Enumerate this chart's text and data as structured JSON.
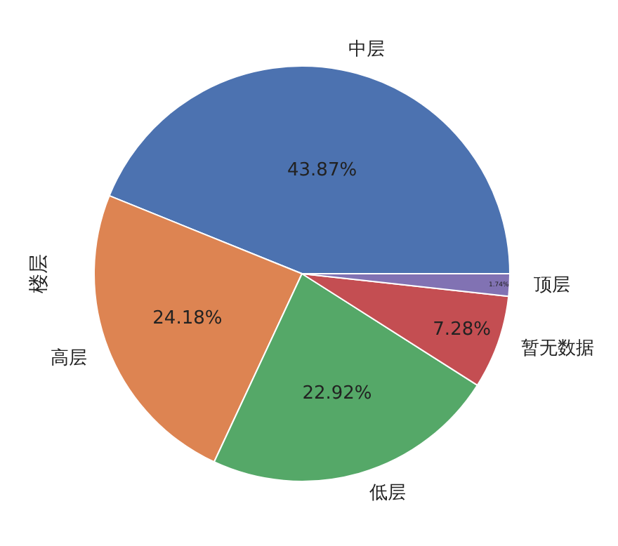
{
  "chart_data": {
    "type": "pie",
    "ylabel": "楼层",
    "categories": [
      "中层",
      "高层",
      "低层",
      "暂无数据",
      "顶层"
    ],
    "values": [
      43.87,
      24.18,
      22.92,
      7.28,
      1.74
    ],
    "value_labels": [
      "43.87%",
      "24.18%",
      "22.92%",
      "7.28%",
      "1.74%"
    ],
    "colors": [
      "#4c72b0",
      "#dd8452",
      "#55a868",
      "#c44e52",
      "#8172b3"
    ]
  }
}
